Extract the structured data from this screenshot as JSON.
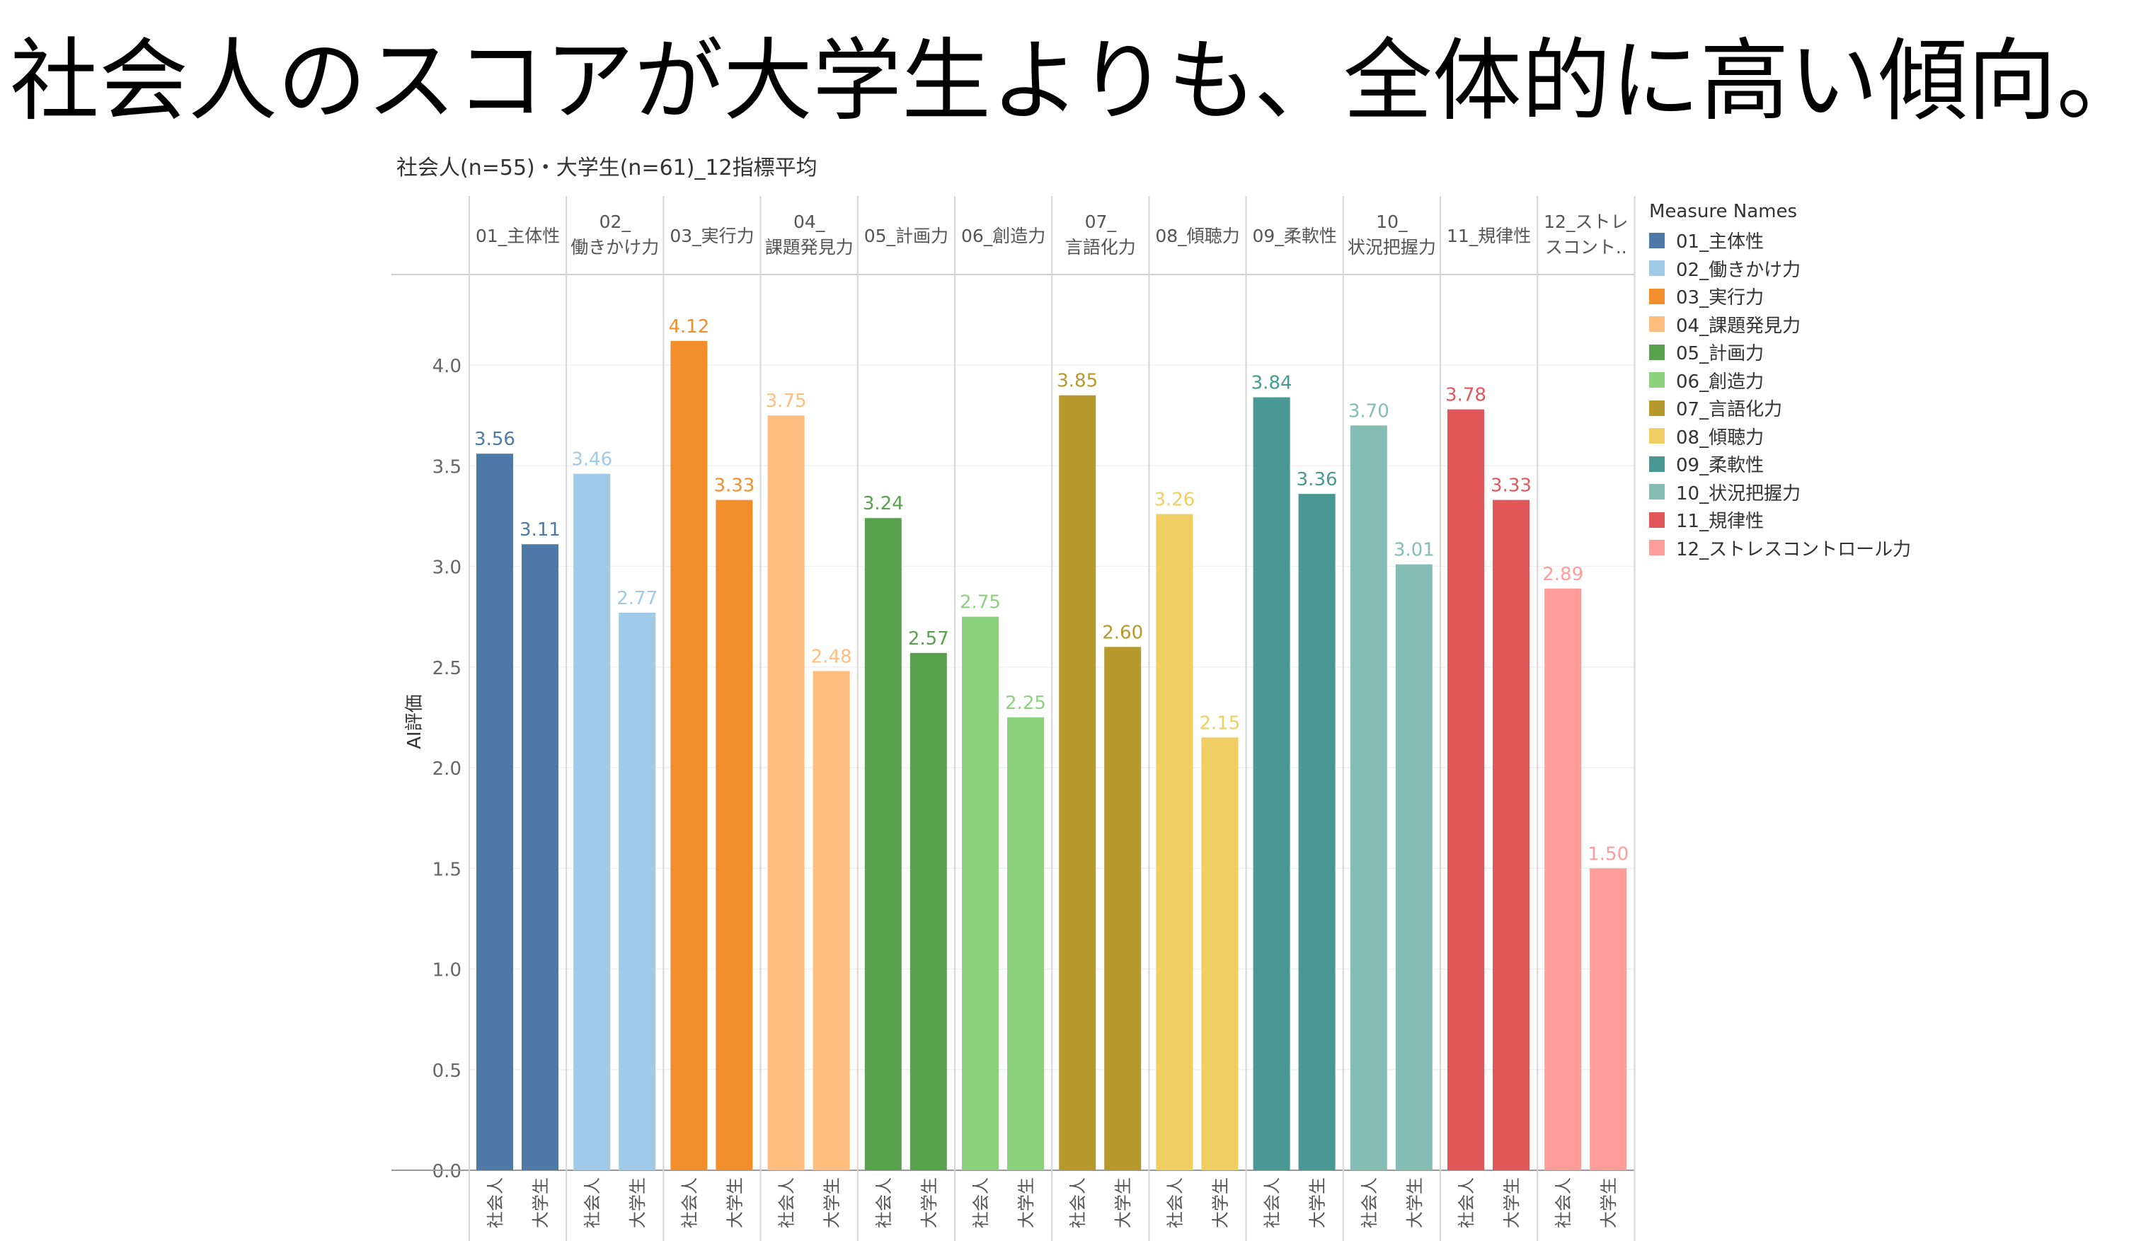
{
  "headline": "社会人のスコアが大学生よりも、全体的に高い傾向。",
  "chart_data": {
    "type": "bar",
    "title": "社会人(n=55)・大学生(n=61)_12指標平均",
    "ylabel": "AI評価",
    "ylim": [
      0,
      4.45
    ],
    "yticks": [
      "0.0",
      "0.5",
      "1.0",
      "1.5",
      "2.0",
      "2.5",
      "3.0",
      "3.5",
      "4.0"
    ],
    "subcategories": [
      "社会人",
      "大学生"
    ],
    "legend_title": "Measure Names",
    "legend_position": "right",
    "gridlines": true,
    "groups": [
      {
        "header_lines": [
          "01_主体性"
        ],
        "legend": "01_主体性",
        "color": "#4e79a7",
        "values": [
          3.56,
          3.11
        ],
        "labels": [
          "3.56",
          "3.11"
        ]
      },
      {
        "header_lines": [
          "02_",
          "働きかけ力"
        ],
        "legend": "02_働きかけ力",
        "color": "#a0cbe8",
        "values": [
          3.46,
          2.77
        ],
        "labels": [
          "3.46",
          "2.77"
        ]
      },
      {
        "header_lines": [
          "03_実行力"
        ],
        "legend": "03_実行力",
        "color": "#f28e2b",
        "values": [
          4.12,
          3.33
        ],
        "labels": [
          "4.12",
          "3.33"
        ]
      },
      {
        "header_lines": [
          "04_",
          "課題発見力"
        ],
        "legend": "04_課題発見力",
        "color": "#ffbe7d",
        "values": [
          3.75,
          2.48
        ],
        "labels": [
          "3.75",
          "2.48"
        ]
      },
      {
        "header_lines": [
          "05_計画力"
        ],
        "legend": "05_計画力",
        "color": "#59a14f",
        "values": [
          3.24,
          2.57
        ],
        "labels": [
          "3.24",
          "2.57"
        ]
      },
      {
        "header_lines": [
          "06_創造力"
        ],
        "legend": "06_創造力",
        "color": "#8cd17d",
        "values": [
          2.75,
          2.25
        ],
        "labels": [
          "2.75",
          "2.25"
        ]
      },
      {
        "header_lines": [
          "07_",
          "言語化力"
        ],
        "legend": "07_言語化力",
        "color": "#b6992d",
        "values": [
          3.85,
          2.6
        ],
        "labels": [
          "3.85",
          "2.60"
        ]
      },
      {
        "header_lines": [
          "08_傾聴力"
        ],
        "legend": "08_傾聴力",
        "color": "#f1ce63",
        "values": [
          3.26,
          2.15
        ],
        "labels": [
          "3.26",
          "2.15"
        ]
      },
      {
        "header_lines": [
          "09_柔軟性"
        ],
        "legend": "09_柔軟性",
        "color": "#499894",
        "values": [
          3.84,
          3.36
        ],
        "labels": [
          "3.84",
          "3.36"
        ]
      },
      {
        "header_lines": [
          "10_",
          "状況把握力"
        ],
        "legend": "10_状況把握力",
        "color": "#86bcb6",
        "values": [
          3.7,
          3.01
        ],
        "labels": [
          "3.70",
          "3.01"
        ]
      },
      {
        "header_lines": [
          "11_規律性"
        ],
        "legend": "11_規律性",
        "color": "#e15759",
        "values": [
          3.78,
          3.33
        ],
        "labels": [
          "3.78",
          "3.33"
        ]
      },
      {
        "header_lines": [
          "12_ストレ",
          "スコント.."
        ],
        "legend": "12_ストレスコントロール力",
        "color": "#ff9d9a",
        "values": [
          2.89,
          1.5
        ],
        "labels": [
          "2.89",
          "1.50"
        ]
      }
    ]
  }
}
